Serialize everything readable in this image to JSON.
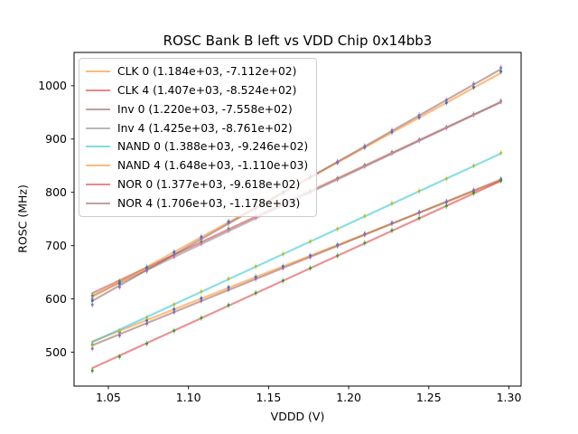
{
  "chart_data": {
    "type": "line",
    "title": "ROSC Bank B left vs VDD Chip 0x14bb3",
    "xlabel": "VDDD (V)",
    "ylabel": "ROSC (MHz)",
    "grid": false,
    "legend_position": "upper-left",
    "xlim": [
      1.0286,
      1.3076
    ],
    "ylim": [
      436.5,
      1062.5
    ],
    "x_ticks": [
      1.05,
      1.1,
      1.15,
      1.2,
      1.25,
      1.3
    ],
    "x_tick_labels": [
      "1.05",
      "1.10",
      "1.15",
      "1.20",
      "1.25",
      "1.30"
    ],
    "y_ticks": [
      500,
      600,
      700,
      800,
      900,
      1000
    ],
    "y_tick_labels": [
      "500",
      "600",
      "700",
      "800",
      "900",
      "1000"
    ],
    "x": [
      1.04,
      1.057,
      1.074,
      1.091,
      1.108,
      1.125,
      1.142,
      1.159,
      1.176,
      1.193,
      1.21,
      1.227,
      1.244,
      1.261,
      1.278,
      1.295
    ],
    "series": [
      {
        "name": "CLK 0",
        "legend_label": "CLK 0 (1.184e+03, -7.112e+02)",
        "slope": 1184.0,
        "intercept": -711.2,
        "line_color": "#ff7f0e",
        "point_color": "#1f77b4",
        "y": [
          514.2,
          537.8,
          559.4,
          580.5,
          601.2,
          621.8,
          641.4,
          661.0,
          681.2,
          701.3,
          721.9,
          742.5,
          762.2,
          781.8,
          802.4,
          823.0
        ]
      },
      {
        "name": "CLK 4",
        "legend_label": "CLK 4 (1.407e+03, -8.524e+02)",
        "slope": 1407.0,
        "intercept": -852.4,
        "line_color": "#d62728",
        "point_color": "#2ca02c",
        "y": [
          605.9,
          632.8,
          657.7,
          682.7,
          707.1,
          731.5,
          754.9,
          778.4,
          802.3,
          826.2,
          850.6,
          875.1,
          898.5,
          921.9,
          946.3,
          971.3
        ]
      },
      {
        "name": "Inv 0",
        "legend_label": "Inv 0 (1.220e+03, -7.558e+02)",
        "slope": 1220.0,
        "intercept": -755.8,
        "line_color": "#8c564b",
        "point_color": "#9467bd",
        "y": [
          507.0,
          531.2,
          553.5,
          575.2,
          596.5,
          617.7,
          637.9,
          658.2,
          678.9,
          699.7,
          720.9,
          742.1,
          762.4,
          782.6,
          803.9,
          825.1
        ]
      },
      {
        "name": "Inv 4",
        "legend_label": "Inv 4 (1.425e+03, -8.761e+02)",
        "slope": 1425.0,
        "intercept": -876.1,
        "line_color": "#7f7f7f",
        "point_color": "#e377c2",
        "y": [
          600.9,
          628.1,
          653.4,
          678.6,
          703.3,
          728.0,
          751.8,
          775.5,
          799.7,
          823.9,
          848.7,
          873.4,
          897.1,
          920.8,
          945.6,
          970.8
        ]
      },
      {
        "name": "NAND 0",
        "legend_label": "NAND 0 (1.388e+03, -9.246e+02)",
        "slope": 1388.0,
        "intercept": -924.6,
        "line_color": "#17becf",
        "point_color": "#bcbd22",
        "y": [
          512.9,
          540.0,
          565.1,
          589.7,
          613.8,
          637.9,
          661.0,
          684.1,
          707.7,
          731.3,
          755.4,
          779.5,
          802.6,
          825.7,
          849.8,
          873.9
        ]
      },
      {
        "name": "NAND 4",
        "legend_label": "NAND 4 (1.648e+03, -1.110e+03)",
        "slope": 1648.0,
        "intercept": -1110.0,
        "line_color": "#ff7f0e",
        "point_color": "#1f77b4",
        "y": [
          596.9,
          628.9,
          658.9,
          688.0,
          716.5,
          745.0,
          772.5,
          800.1,
          828.1,
          856.1,
          884.6,
          913.2,
          940.7,
          968.2,
          997.2,
          1026.8
        ]
      },
      {
        "name": "NOR 0",
        "legend_label": "NOR 0 (1.377e+03, -9.618e+02)",
        "slope": 1377.0,
        "intercept": -961.8,
        "line_color": "#d62728",
        "point_color": "#2ca02c",
        "y": [
          465.3,
          491.7,
          516.1,
          540.5,
          564.4,
          588.3,
          611.2,
          634.1,
          657.6,
          681.0,
          704.9,
          728.8,
          751.7,
          774.6,
          798.5,
          822.4
        ]
      },
      {
        "name": "NOR 4",
        "legend_label": "NOR 4 (1.706e+03, -1.178e+03)",
        "slope": 1706.0,
        "intercept": -1178.0,
        "line_color": "#8c564b",
        "point_color": "#9467bd",
        "y": [
          589.2,
          622.2,
          653.2,
          683.2,
          712.8,
          742.3,
          770.8,
          799.3,
          828.3,
          857.3,
          886.8,
          916.3,
          944.8,
          973.3,
          1003.3,
          1033.8
        ]
      }
    ],
    "style": {
      "line_alpha": 0.5,
      "line_width": 2.2,
      "axis_color": "#000000",
      "text_color": "#000000"
    }
  }
}
